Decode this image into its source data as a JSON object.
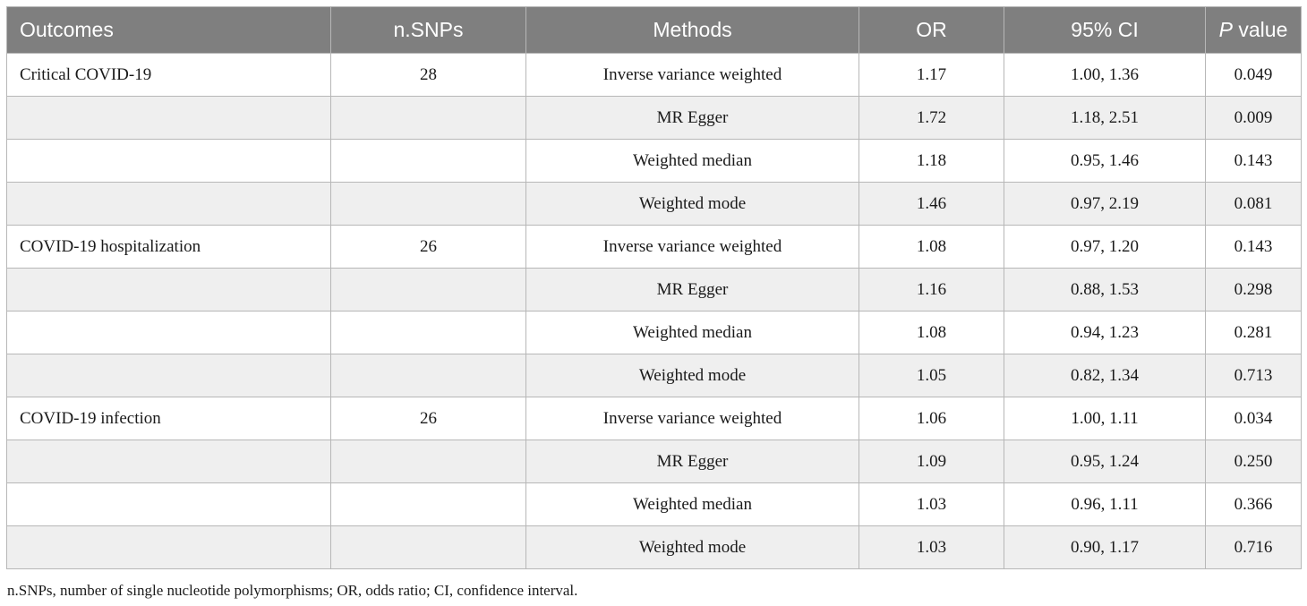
{
  "table": {
    "headers": [
      "Outcomes",
      "n.SNPs",
      "Methods",
      "OR",
      "95% CI",
      "P value"
    ],
    "header_p_italic": "P",
    "header_p_rest": " value",
    "rows": [
      [
        "Critical COVID-19",
        "28",
        "Inverse variance weighted",
        "1.17",
        "1.00, 1.36",
        "0.049"
      ],
      [
        "",
        "",
        "MR Egger",
        "1.72",
        "1.18, 2.51",
        "0.009"
      ],
      [
        "",
        "",
        "Weighted median",
        "1.18",
        "0.95, 1.46",
        "0.143"
      ],
      [
        "",
        "",
        "Weighted mode",
        "1.46",
        "0.97, 2.19",
        "0.081"
      ],
      [
        "COVID-19 hospitalization",
        "26",
        "Inverse variance weighted",
        "1.08",
        "0.97, 1.20",
        "0.143"
      ],
      [
        "",
        "",
        "MR Egger",
        "1.16",
        "0.88, 1.53",
        "0.298"
      ],
      [
        "",
        "",
        "Weighted median",
        "1.08",
        "0.94, 1.23",
        "0.281"
      ],
      [
        "",
        "",
        "Weighted mode",
        "1.05",
        "0.82, 1.34",
        "0.713"
      ],
      [
        "COVID-19 infection",
        "26",
        "Inverse variance weighted",
        "1.06",
        "1.00, 1.11",
        "0.034"
      ],
      [
        "",
        "",
        "MR Egger",
        "1.09",
        "0.95, 1.24",
        "0.250"
      ],
      [
        "",
        "",
        "Weighted median",
        "1.03",
        "0.96, 1.11",
        "0.366"
      ],
      [
        "",
        "",
        "Weighted mode",
        "1.03",
        "0.90, 1.17",
        "0.716"
      ]
    ]
  },
  "footnote": "n.SNPs, number of single nucleotide polymorphisms; OR, odds ratio; CI, confidence interval.",
  "colors": {
    "header_bg": "#7f7f7f",
    "header_text": "#ffffff",
    "stripe": "#efefef",
    "border": "#b7b7b7"
  }
}
